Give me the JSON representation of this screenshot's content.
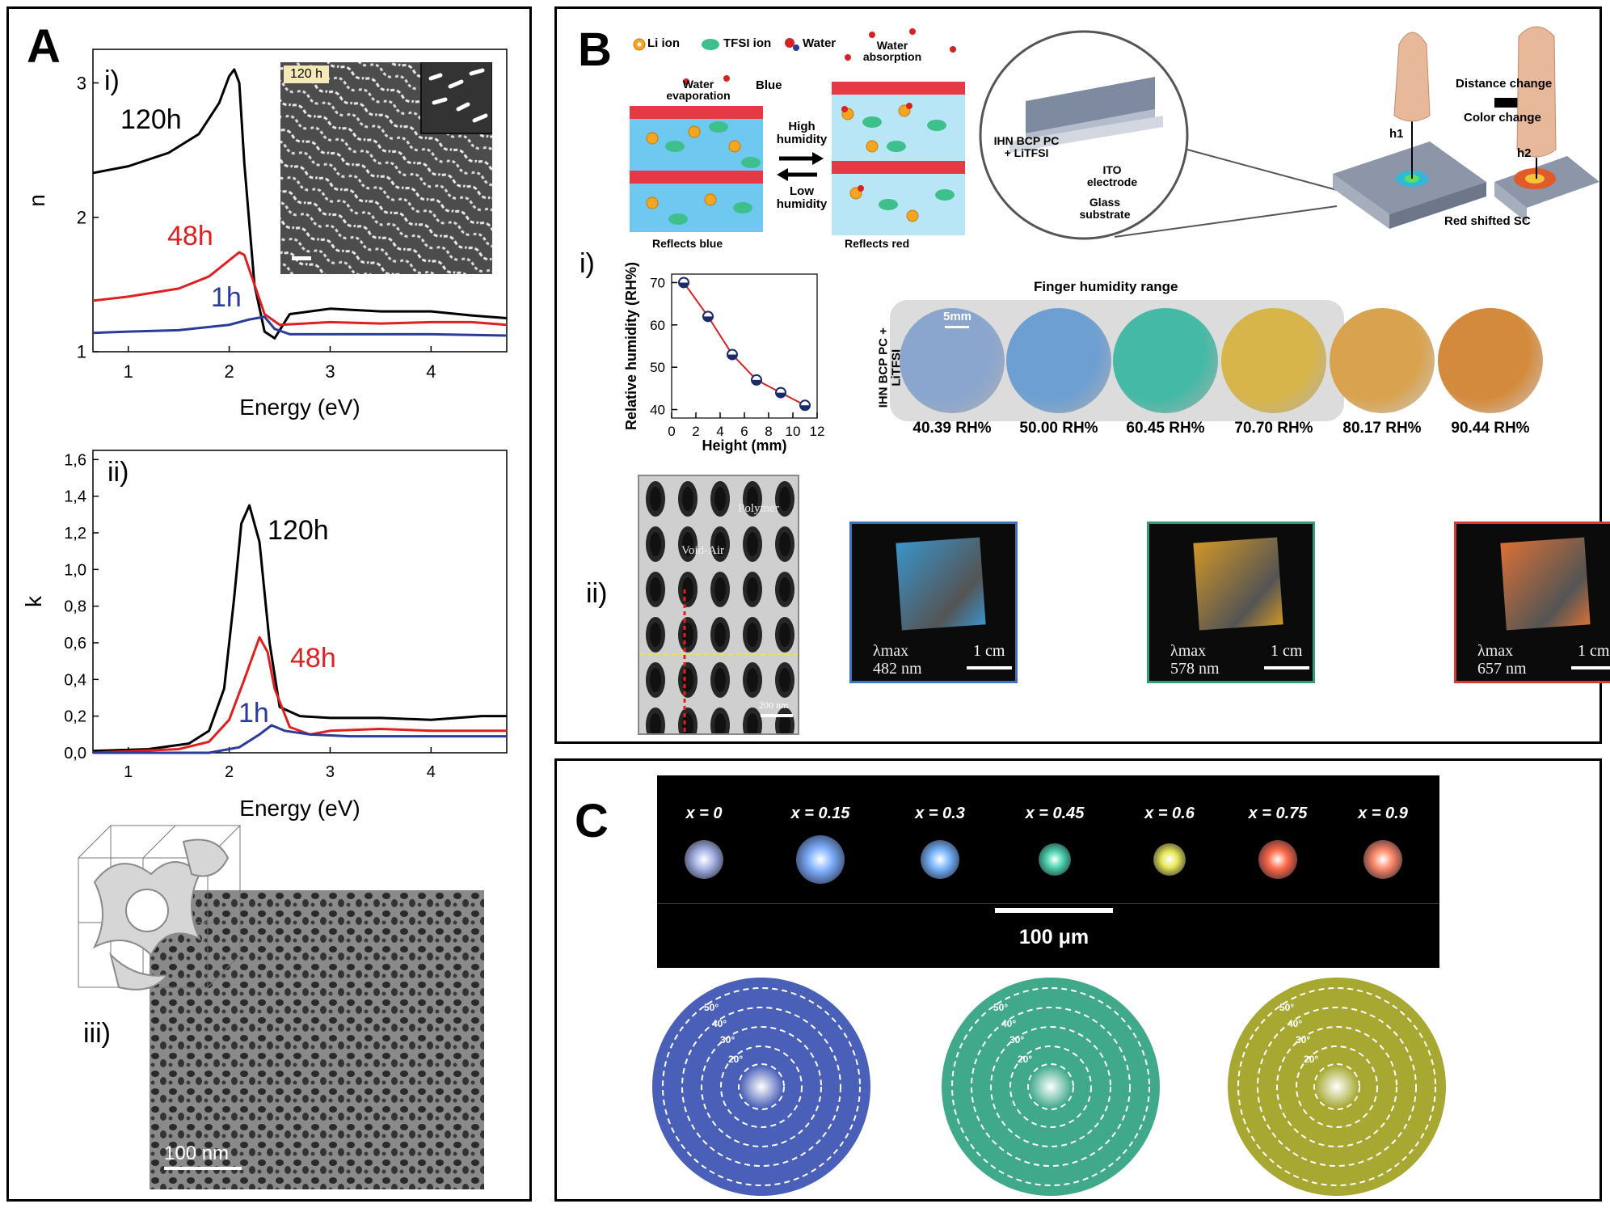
{
  "panels": {
    "A": {
      "letter": "A",
      "sub_i": "i)",
      "sub_ii": "ii)",
      "sub_iii": "iii)",
      "inset_i_label": "120 h",
      "scalebar_iii": "100 nm"
    },
    "B": {
      "letter": "B",
      "sub_i": "i)",
      "sub_ii": "ii)",
      "schematic": {
        "legend_li": "Li ion",
        "legend_tfsi": "TFSI ion",
        "legend_water": "Water",
        "water_evaporation": "Water evaporation",
        "blue": "Blue",
        "water_absorption": "Water absorption",
        "high_humidity": "High humidity",
        "low_humidity": "Low humidity",
        "reflects_blue": "Reflects blue",
        "reflects_red": "Reflects red",
        "ihn_label": "IHN BCP PC + LiTFSI",
        "ito_label": "ITO electrode",
        "glass_label": "Glass substrate",
        "h1": "h1",
        "h2": "h2",
        "distance_change": "Distance change",
        "color_change": "Color change",
        "red_shifted": "Red shifted SC"
      },
      "finger_range": "Finger humidity range",
      "photo_side_label": "IHN BCP PC + LiTFSI",
      "scale_5mm": "5mm",
      "rh_labels": [
        "40.39 RH%",
        "50.00 RH%",
        "60.45 RH%",
        "70.70 RH%",
        "80.17 RH%",
        "90.44 RH%"
      ],
      "rh_colors": [
        "#8aa6cf",
        "#6e9fd2",
        "#44b9a5",
        "#d8b54a",
        "#d9a24f",
        "#d48a3c"
      ],
      "sem_polymer": "Polymer",
      "sem_void": "Void-Air",
      "sem_scale": "200 nm",
      "films": [
        {
          "lambda": "λmax",
          "value": "482 nm",
          "scale": "1 cm",
          "border": "#3b73c2",
          "color": "#3fa3e0"
        },
        {
          "lambda": "λmax",
          "value": "578 nm",
          "scale": "1 cm",
          "border": "#2f9e78",
          "color": "#e6a52a"
        },
        {
          "lambda": "λmax",
          "value": "657 nm",
          "scale": "1 cm",
          "border": "#d33b3b",
          "color": "#f07c3a"
        }
      ]
    },
    "C": {
      "letter": "C",
      "x_labels": [
        "x = 0",
        "x = 0.15",
        "x = 0.3",
        "x = 0.45",
        "x = 0.6",
        "x = 0.75",
        "x = 0.9"
      ],
      "dot_colors": [
        "#a9b6e8",
        "#7fb0ff",
        "#79b7ff",
        "#4fd7b0",
        "#e8e85a",
        "#ff6a4a",
        "#ff8a6a"
      ],
      "scalebar": "100 μm",
      "angles": [
        "50°",
        "40°",
        "30°",
        "20°"
      ],
      "disc_colors": [
        "#4a5fb8",
        "#3fa98a",
        "#a7a832"
      ]
    }
  },
  "chart_data": [
    {
      "type": "line",
      "panel": "A-i",
      "xlabel": "Energy (eV)",
      "ylabel": "n",
      "xlim": [
        0.65,
        4.75
      ],
      "ylim": [
        1,
        3.25
      ],
      "xticks": [
        1,
        2,
        3,
        4
      ],
      "yticks": [
        1,
        2,
        3
      ],
      "series": [
        {
          "name": "120h",
          "color": "#000000",
          "x": [
            0.65,
            1.0,
            1.4,
            1.7,
            1.9,
            2.0,
            2.05,
            2.1,
            2.15,
            2.25,
            2.35,
            2.45,
            2.6,
            3.0,
            3.5,
            4.0,
            4.4,
            4.75
          ],
          "y": [
            2.33,
            2.38,
            2.48,
            2.62,
            2.85,
            3.05,
            3.1,
            3.0,
            2.4,
            1.5,
            1.15,
            1.1,
            1.28,
            1.32,
            1.3,
            1.3,
            1.27,
            1.25
          ]
        },
        {
          "name": "48h",
          "color": "#e02020",
          "x": [
            0.65,
            1.0,
            1.5,
            1.8,
            2.0,
            2.1,
            2.15,
            2.25,
            2.35,
            2.5,
            3.0,
            3.5,
            4.0,
            4.4,
            4.75
          ],
          "y": [
            1.38,
            1.41,
            1.47,
            1.56,
            1.68,
            1.74,
            1.72,
            1.5,
            1.28,
            1.2,
            1.22,
            1.21,
            1.22,
            1.22,
            1.2
          ]
        },
        {
          "name": "1h",
          "color": "#2a3b9a",
          "x": [
            0.65,
            1.0,
            1.5,
            2.0,
            2.2,
            2.35,
            2.45,
            2.6,
            3.0,
            4.0,
            4.75
          ],
          "y": [
            1.14,
            1.15,
            1.16,
            1.2,
            1.24,
            1.26,
            1.17,
            1.13,
            1.13,
            1.13,
            1.12
          ]
        }
      ]
    },
    {
      "type": "line",
      "panel": "A-ii",
      "xlabel": "Energy (eV)",
      "ylabel": "k",
      "xlim": [
        0.65,
        4.75
      ],
      "ylim": [
        0,
        1.65
      ],
      "xticks": [
        1,
        2,
        3,
        4
      ],
      "yticks": [
        0.0,
        0.2,
        0.4,
        0.6,
        0.8,
        1.0,
        1.2,
        1.4,
        1.6
      ],
      "ytick_labels": [
        "0,0",
        "0,2",
        "0,4",
        "0,6",
        "0,8",
        "1,0",
        "1,2",
        "1,4",
        "1,6"
      ],
      "series": [
        {
          "name": "120h",
          "color": "#000000",
          "x": [
            0.65,
            1.2,
            1.6,
            1.8,
            1.95,
            2.05,
            2.12,
            2.2,
            2.3,
            2.4,
            2.5,
            2.7,
            3.0,
            3.5,
            4.0,
            4.5,
            4.75
          ],
          "y": [
            0.01,
            0.02,
            0.05,
            0.12,
            0.35,
            0.85,
            1.25,
            1.35,
            1.15,
            0.6,
            0.25,
            0.2,
            0.19,
            0.19,
            0.18,
            0.2,
            0.2
          ]
        },
        {
          "name": "48h",
          "color": "#e02020",
          "x": [
            0.65,
            1.5,
            1.8,
            2.0,
            2.15,
            2.3,
            2.38,
            2.45,
            2.6,
            2.8,
            3.0,
            3.5,
            4.0,
            4.5,
            4.75
          ],
          "y": [
            0.0,
            0.02,
            0.06,
            0.18,
            0.4,
            0.63,
            0.55,
            0.35,
            0.14,
            0.1,
            0.12,
            0.13,
            0.12,
            0.12,
            0.12
          ]
        },
        {
          "name": "1h",
          "color": "#2a3b9a",
          "x": [
            0.65,
            1.8,
            2.1,
            2.3,
            2.42,
            2.55,
            2.8,
            3.2,
            4.0,
            4.75
          ],
          "y": [
            0.0,
            0.0,
            0.03,
            0.1,
            0.15,
            0.12,
            0.1,
            0.09,
            0.09,
            0.09
          ]
        }
      ]
    },
    {
      "type": "line",
      "panel": "B-i",
      "xlabel": "Height (mm)",
      "ylabel": "Relative humidity (RH%)",
      "xlim": [
        0,
        12
      ],
      "ylim": [
        38,
        72
      ],
      "xticks": [
        0,
        2,
        4,
        6,
        8,
        10,
        12
      ],
      "yticks": [
        40,
        50,
        60,
        70
      ],
      "series": [
        {
          "color": "#d62222",
          "x": [
            1,
            3,
            5,
            7,
            9,
            11
          ],
          "y": [
            70,
            62,
            53,
            47,
            44,
            41
          ]
        }
      ]
    }
  ]
}
